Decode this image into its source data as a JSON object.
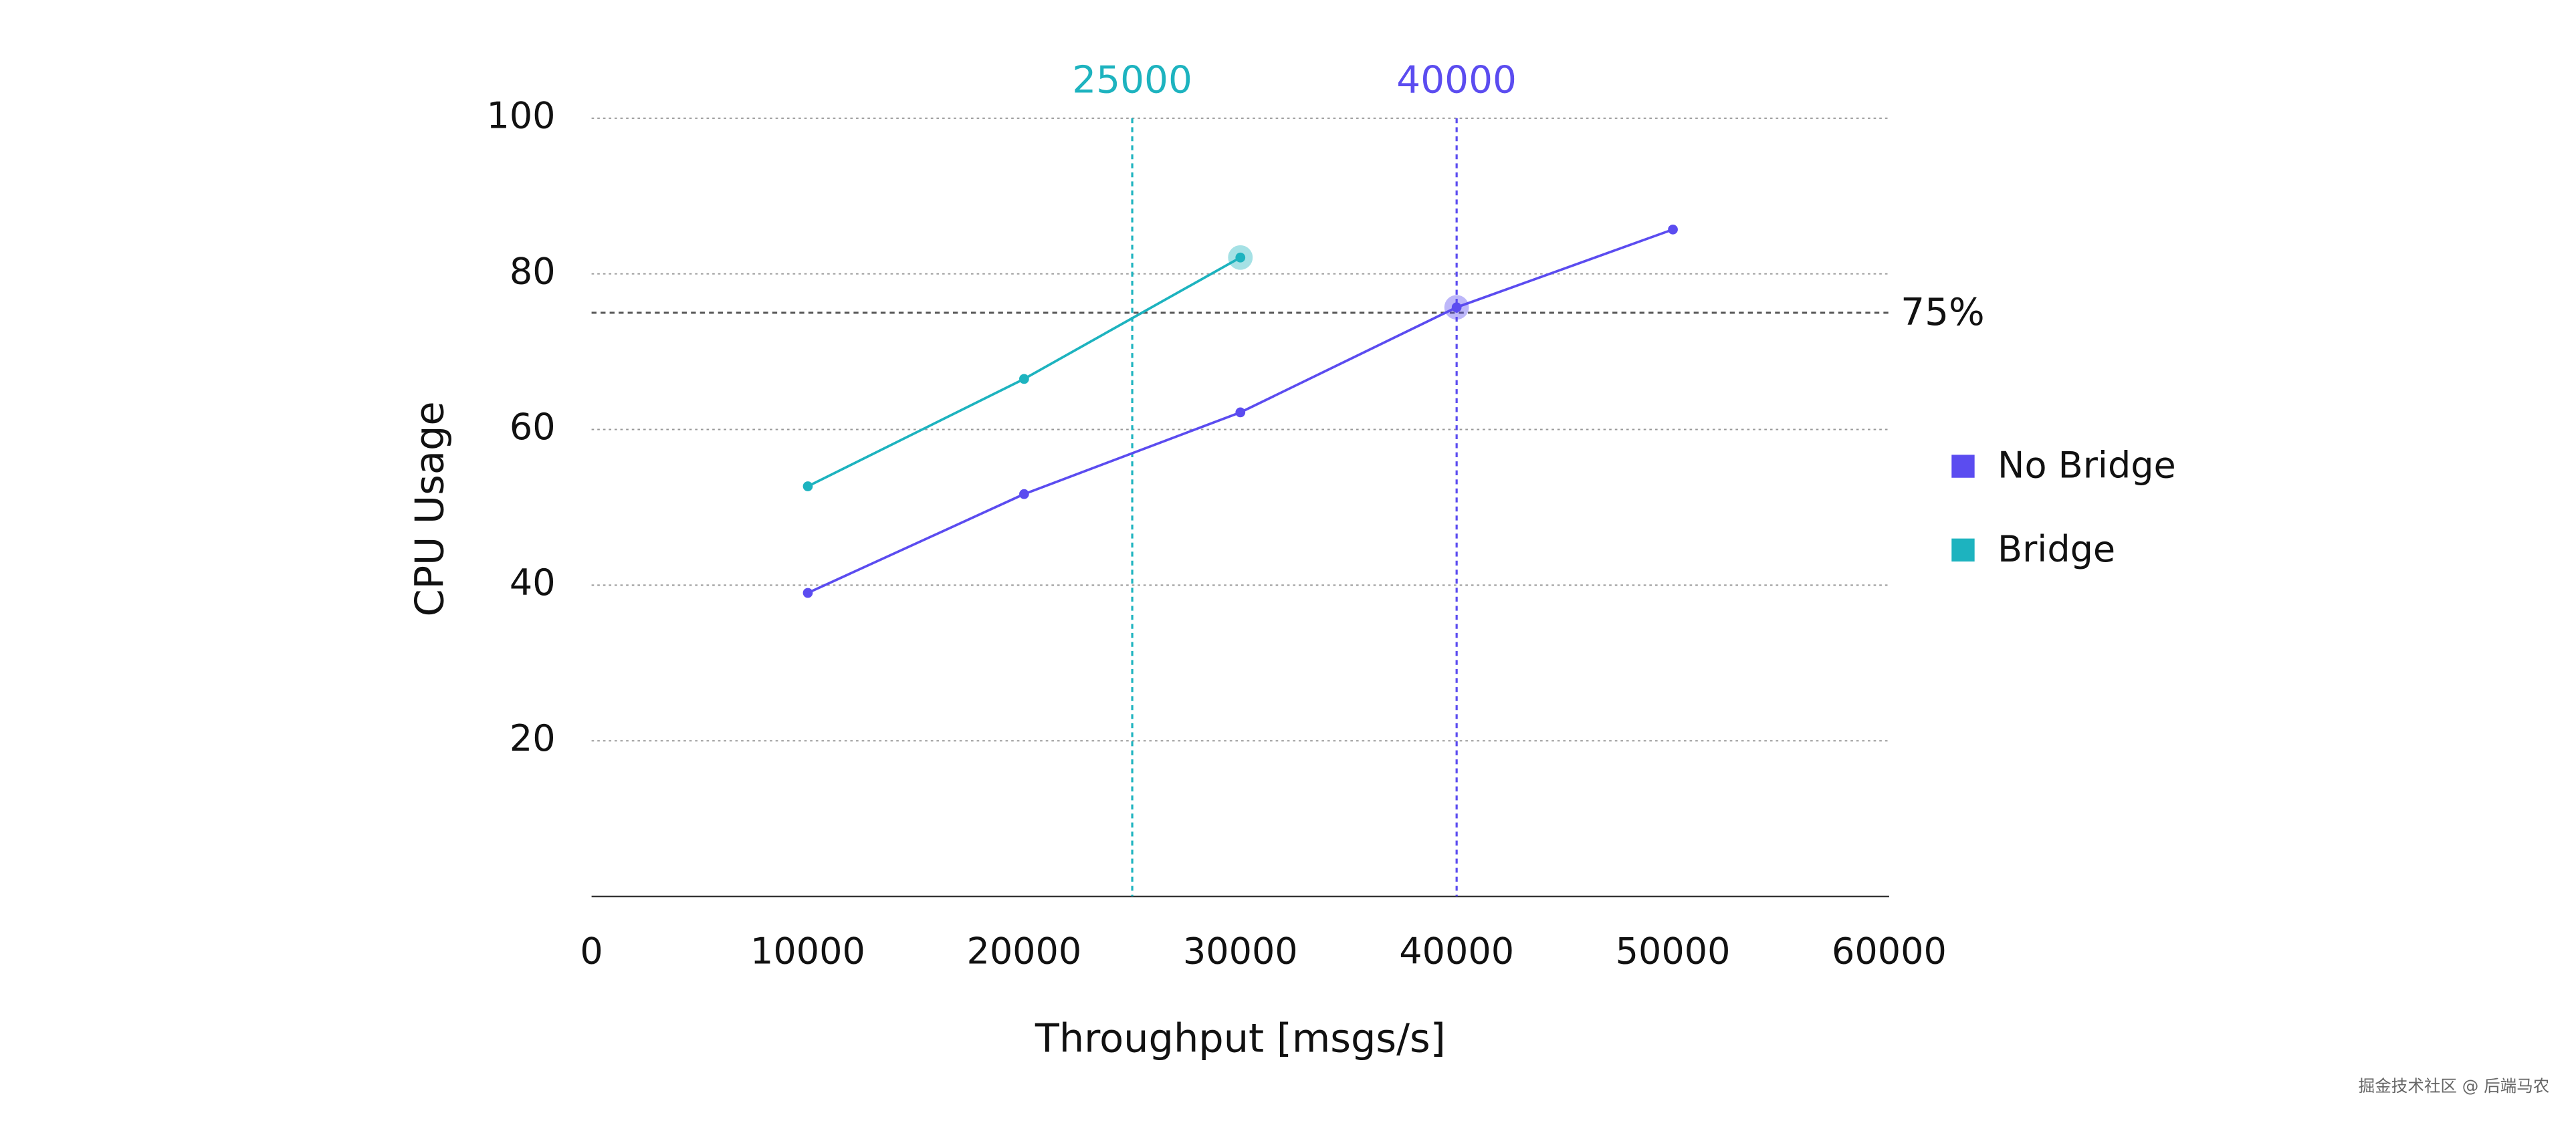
{
  "chart_data": {
    "type": "line",
    "x_label": "Throughput [msgs/s]",
    "y_label": "CPU Usage",
    "x": [
      10000,
      20000,
      30000,
      40000,
      50000
    ],
    "series": [
      {
        "name": "No Bridge",
        "color": "#5b4cf0",
        "values": [
          39.0,
          51.7,
          62.2,
          75.7,
          85.7
        ],
        "highlight": 3
      },
      {
        "name": "Bridge",
        "color": "#1db3bf",
        "values": [
          52.7,
          66.5,
          82.1,
          null,
          null
        ],
        "highlight": 2
      }
    ],
    "xlim": [
      0,
      60000
    ],
    "xticks": [
      0,
      10000,
      20000,
      30000,
      40000,
      50000,
      60000
    ],
    "ylim": [
      0,
      100
    ],
    "yticks": [
      20,
      40,
      60,
      80,
      100
    ],
    "grid": true,
    "reference_lines": [
      {
        "axis": "x",
        "value": 25000,
        "color": "#1db3bf"
      },
      {
        "axis": "x",
        "value": 40000,
        "color": "#5b4cf0"
      },
      {
        "axis": "y",
        "value": {
          "value": 75,
          "label": "75%"
        },
        "color": "#555555"
      }
    ],
    "legend": "right",
    "watermark": "掘金技术社区 @ 后端马农"
  }
}
